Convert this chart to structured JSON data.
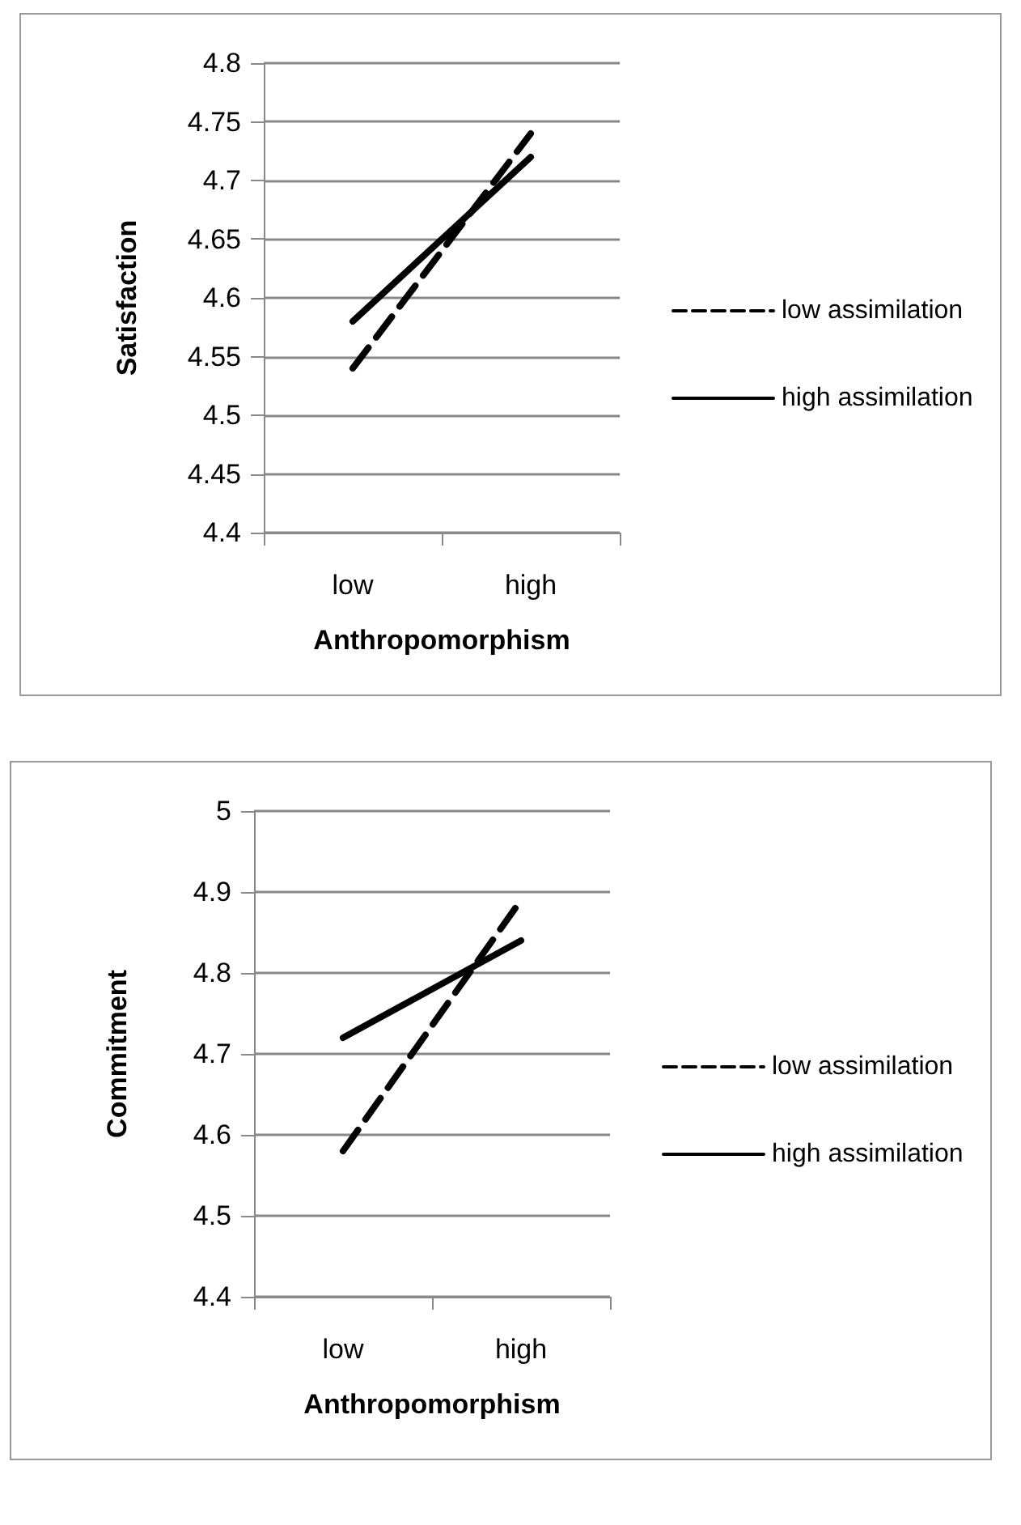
{
  "chart_data": [
    {
      "type": "line",
      "xlabel": "Anthropomorphism",
      "ylabel": "Satisfaction",
      "categories": [
        "low",
        "high"
      ],
      "ylim": [
        4.4,
        4.8
      ],
      "yticks": [
        4.4,
        4.45,
        4.5,
        4.55,
        4.6,
        4.65,
        4.7,
        4.75,
        4.8
      ],
      "grid": "y",
      "legend": "right",
      "marker": "none",
      "series": [
        {
          "name": "low assimilation",
          "color": "#000000",
          "line_style": "dashed",
          "values": [
            4.54,
            4.74
          ]
        },
        {
          "name": "high assimilation",
          "color": "#000000",
          "line_style": "solid",
          "values": [
            4.58,
            4.72
          ]
        }
      ]
    },
    {
      "type": "line",
      "xlabel": "Anthropomorphism",
      "ylabel": "Commitment",
      "categories": [
        "low",
        "high"
      ],
      "ylim": [
        4.4,
        5
      ],
      "yticks": [
        4.4,
        4.5,
        4.6,
        4.7,
        4.8,
        4.9,
        5
      ],
      "grid": "y",
      "legend": "right",
      "marker": "none",
      "series": [
        {
          "name": "low assimilation",
          "color": "#000000",
          "line_style": "dashed",
          "values": [
            4.58,
            4.89
          ]
        },
        {
          "name": "high assimilation",
          "color": "#000000",
          "line_style": "solid",
          "values": [
            4.72,
            4.84
          ]
        }
      ]
    }
  ]
}
